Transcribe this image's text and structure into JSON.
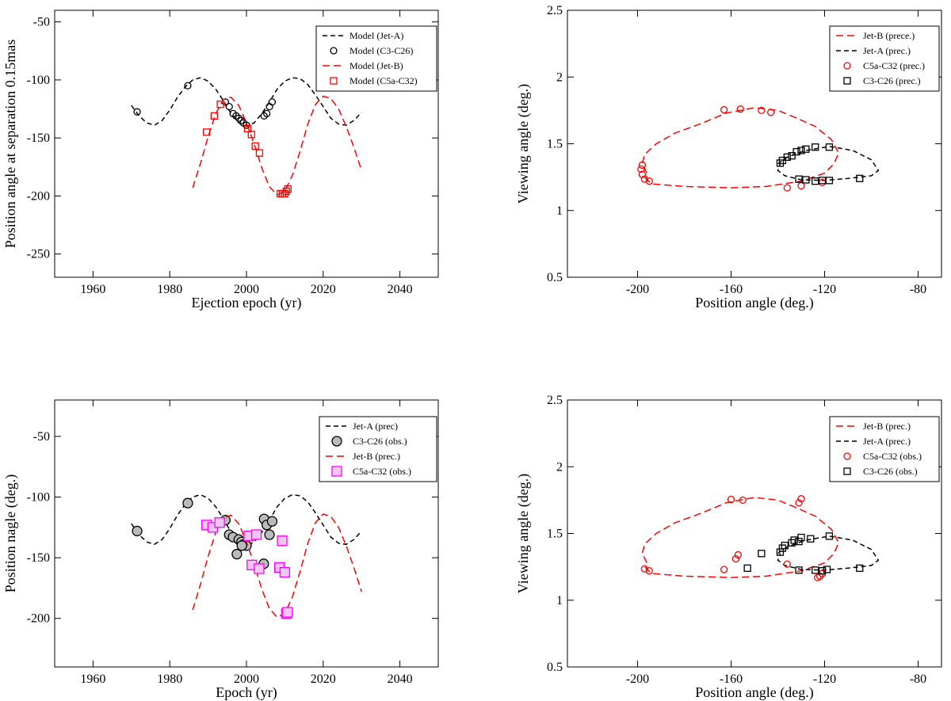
{
  "chart_data": [
    {
      "type": "line",
      "panel": "top-left",
      "xlabel": "Ejection epoch (yr)",
      "ylabel": "Position angle at separation 0.15mas",
      "xlim": [
        1950,
        2050
      ],
      "ylim": [
        -270,
        -40
      ],
      "xticks": [
        1960,
        1980,
        2000,
        2020,
        2040
      ],
      "yticks": [
        -250,
        -200,
        -150,
        -100,
        -50
      ],
      "legend_position": "top-right",
      "series": [
        {
          "name": "Model (Jet-A)",
          "kind": "line",
          "color": "#000000",
          "dash": "6,4",
          "x": [
            1970,
            1972,
            1974,
            1976,
            1978,
            1980,
            1982,
            1984,
            1986,
            1988,
            1990,
            1992,
            1994,
            1996,
            1998,
            2000,
            2002,
            2004,
            2006,
            2008,
            2010,
            2012,
            2014,
            2016,
            2018,
            2020,
            2022,
            2024,
            2026,
            2028,
            2030
          ],
          "y": [
            -122,
            -131,
            -137,
            -139,
            -135,
            -126,
            -115,
            -106,
            -100,
            -98,
            -101,
            -108,
            -118,
            -129,
            -137,
            -140,
            -137,
            -129,
            -119,
            -108,
            -101,
            -98,
            -99,
            -104,
            -113,
            -123,
            -133,
            -138,
            -139,
            -135,
            -128
          ]
        },
        {
          "name": "Model (C3-C26)",
          "kind": "points",
          "marker": "circle",
          "color": "#000000",
          "x": [
            1971.5,
            1984.7,
            1994.5,
            1995.5,
            1996.5,
            1997.3,
            1998.0,
            1998.6,
            1999.2,
            2000.0,
            2004.6,
            2005.3,
            2006.0,
            2006.7
          ],
          "y": [
            -127.5,
            -105,
            -119,
            -123,
            -129,
            -131,
            -133,
            -135,
            -137,
            -139,
            -131,
            -129,
            -123,
            -119
          ]
        },
        {
          "name": "Model (Jet-B)",
          "kind": "line",
          "color": "#ff0000",
          "dash": "9,5",
          "x": [
            1986,
            1988,
            1990,
            1992,
            1994,
            1996,
            1998,
            2000,
            2002,
            2004,
            2006,
            2008,
            2010,
            2012,
            2014,
            2016,
            2018,
            2020,
            2022,
            2024,
            2026,
            2028,
            2030
          ],
          "y": [
            -193,
            -172,
            -149,
            -129,
            -117,
            -115,
            -122,
            -137,
            -155,
            -176,
            -192,
            -199,
            -196,
            -182,
            -161,
            -138,
            -121,
            -114,
            -116,
            -125,
            -140,
            -158,
            -178
          ]
        },
        {
          "name": "Model (C5a-C32)",
          "kind": "points",
          "marker": "square",
          "color": "#ff0000",
          "x": [
            1989.6,
            1991.6,
            1993.2,
            2000.3,
            2001.3,
            2002.3,
            2003.4,
            2008.8,
            2009.4,
            2010.0,
            2010.4,
            2010.8
          ],
          "y": [
            -145,
            -131,
            -121,
            -142,
            -147,
            -157,
            -163,
            -198,
            -198,
            -198,
            -196,
            -194
          ]
        }
      ]
    },
    {
      "type": "line",
      "panel": "top-right",
      "xlabel": "Position angle (deg.)",
      "ylabel": "Viewing angle (deg.)",
      "xlim": [
        -230,
        -70
      ],
      "ylim": [
        0.5,
        2.5
      ],
      "xticks": [
        -200,
        -160,
        -120,
        -80
      ],
      "yticks": [
        0.5,
        1,
        1.5,
        2,
        2.5
      ],
      "legend_position": "top-right",
      "series": [
        {
          "name": "Jet-B (prece.)",
          "kind": "line",
          "color": "#ff0000",
          "dash": "9,5",
          "x": [
            -196,
            -198,
            -197,
            -192,
            -184,
            -173,
            -162,
            -150,
            -140,
            -133,
            -124,
            -117,
            -114,
            -116,
            -120,
            -130,
            -145,
            -160,
            -180,
            -194,
            -197
          ],
          "y": [
            1.28,
            1.35,
            1.42,
            1.5,
            1.58,
            1.65,
            1.73,
            1.77,
            1.75,
            1.7,
            1.63,
            1.53,
            1.43,
            1.35,
            1.28,
            1.22,
            1.18,
            1.17,
            1.18,
            1.2,
            1.25
          ]
        },
        {
          "name": "Jet-A (prec.)",
          "kind": "line",
          "color": "#000000",
          "dash": "6,4",
          "x": [
            -140,
            -136,
            -128,
            -118,
            -108,
            -100,
            -97,
            -100,
            -110,
            -120,
            -130,
            -137,
            -140,
            -139
          ],
          "y": [
            1.35,
            1.4,
            1.45,
            1.48,
            1.45,
            1.38,
            1.3,
            1.26,
            1.24,
            1.225,
            1.23,
            1.26,
            1.3,
            1.35
          ]
        },
        {
          "name": "C5a-C32 (prec.)",
          "kind": "points",
          "marker": "circle",
          "color": "#ff0000",
          "x": [
            -198,
            -198.5,
            -198,
            -197,
            -195,
            -163,
            -156,
            -147,
            -143,
            -136,
            -130,
            -121
          ],
          "y": [
            1.34,
            1.31,
            1.27,
            1.235,
            1.22,
            1.755,
            1.76,
            1.75,
            1.735,
            1.17,
            1.185,
            1.21
          ]
        },
        {
          "name": "C3-C26 (prec.)",
          "kind": "points",
          "marker": "square",
          "color": "#000000",
          "x": [
            -139,
            -138,
            -136,
            -134,
            -132,
            -130,
            -128,
            -124,
            -118,
            -131,
            -128,
            -124,
            -121,
            -118,
            -105
          ],
          "y": [
            1.355,
            1.375,
            1.4,
            1.41,
            1.44,
            1.45,
            1.46,
            1.475,
            1.475,
            1.235,
            1.23,
            1.22,
            1.225,
            1.225,
            1.24
          ]
        }
      ]
    },
    {
      "type": "line",
      "panel": "bottom-left",
      "xlabel": "Epoch (yr)",
      "ylabel": "Position nagle (deg.)",
      "xlim": [
        1950,
        2050
      ],
      "ylim": [
        -240,
        -20
      ],
      "xticks": [
        1960,
        1980,
        2000,
        2020,
        2040
      ],
      "yticks": [
        -200,
        -150,
        -100,
        -50
      ],
      "legend_position": "top-right",
      "series": [
        {
          "name": "Jet-A (prec)",
          "kind": "line",
          "color": "#000000",
          "dash": "6,4",
          "x": [
            1970,
            1972,
            1974,
            1976,
            1978,
            1980,
            1982,
            1984,
            1986,
            1988,
            1990,
            1992,
            1994,
            1996,
            1998,
            2000,
            2002,
            2004,
            2006,
            2008,
            2010,
            2012,
            2014,
            2016,
            2018,
            2020,
            2022,
            2024,
            2026,
            2028,
            2030
          ],
          "y": [
            -122,
            -131,
            -137,
            -139,
            -135,
            -126,
            -115,
            -106,
            -100,
            -98,
            -101,
            -108,
            -118,
            -129,
            -137,
            -140,
            -137,
            -129,
            -119,
            -108,
            -101,
            -98,
            -99,
            -104,
            -113,
            -123,
            -133,
            -138,
            -139,
            -135,
            -128
          ]
        },
        {
          "name": "C3-C26 (obs.)",
          "kind": "points",
          "marker": "circle",
          "color": "#000000",
          "x": [
            1971.5,
            1984.7,
            1994.5,
            1995.5,
            1996.5,
            1997.5,
            1998.0,
            1998.7,
            1999.3,
            2000.0,
            2004.6,
            2005.3,
            2006.0,
            2006.7,
            2004.5,
            1998.8
          ],
          "y": [
            -128,
            -105,
            -119,
            -131,
            -133,
            -147,
            -135,
            -137,
            -139,
            -140,
            -118,
            -123,
            -131,
            -120,
            -155,
            -140
          ]
        },
        {
          "name": "Jet-B (prec.)",
          "kind": "line",
          "color": "#ff0000",
          "dash": "9,5",
          "x": [
            1986,
            1988,
            1990,
            1992,
            1994,
            1996,
            1998,
            2000,
            2002,
            2004,
            2006,
            2008,
            2010,
            2012,
            2014,
            2016,
            2018,
            2020,
            2022,
            2024,
            2026,
            2028,
            2030
          ],
          "y": [
            -193,
            -172,
            -149,
            -129,
            -117,
            -115,
            -122,
            -137,
            -155,
            -176,
            -192,
            -199,
            -196,
            -182,
            -161,
            -138,
            -121,
            -114,
            -116,
            -125,
            -140,
            -158,
            -178
          ]
        },
        {
          "name": "C5a-C32 (obs.)",
          "kind": "points",
          "marker": "square",
          "color": "#ff00ff",
          "x": [
            1989.6,
            1991.2,
            1993.0,
            2000.6,
            2001.4,
            2002.6,
            2003.3,
            2008.6,
            2009.3,
            2010.0,
            2010.4,
            2010.7
          ],
          "y": [
            -123,
            -125,
            -121,
            -132,
            -156,
            -131,
            -159,
            -158,
            -136,
            -162,
            -196,
            -195
          ]
        }
      ]
    },
    {
      "type": "line",
      "panel": "bottom-right",
      "xlabel": "Position angle (deg.)",
      "ylabel": "Viewing angle (deg.)",
      "xlim": [
        -230,
        -70
      ],
      "ylim": [
        0.5,
        2.5
      ],
      "xticks": [
        -200,
        -160,
        -120,
        -80
      ],
      "yticks": [
        0.5,
        1,
        1.5,
        2,
        2.5
      ],
      "legend_position": "top-right",
      "series": [
        {
          "name": "Jet-B (prec.)",
          "kind": "line",
          "color": "#ff0000",
          "dash": "9,5",
          "x": [
            -196,
            -198,
            -197,
            -192,
            -184,
            -173,
            -162,
            -150,
            -140,
            -133,
            -124,
            -117,
            -114,
            -116,
            -120,
            -130,
            -145,
            -160,
            -180,
            -194,
            -197
          ],
          "y": [
            1.28,
            1.35,
            1.42,
            1.5,
            1.58,
            1.65,
            1.73,
            1.77,
            1.75,
            1.7,
            1.63,
            1.53,
            1.43,
            1.35,
            1.28,
            1.22,
            1.18,
            1.17,
            1.18,
            1.2,
            1.25
          ]
        },
        {
          "name": "Jet-A (prec.)",
          "kind": "line",
          "color": "#000000",
          "dash": "6,4",
          "x": [
            -140,
            -136,
            -128,
            -118,
            -108,
            -100,
            -97,
            -100,
            -110,
            -120,
            -130,
            -137,
            -140,
            -139
          ],
          "y": [
            1.35,
            1.4,
            1.45,
            1.48,
            1.45,
            1.38,
            1.3,
            1.26,
            1.24,
            1.225,
            1.23,
            1.26,
            1.3,
            1.35
          ]
        },
        {
          "name": "C5a-C32 (obs.)",
          "kind": "points",
          "marker": "circle",
          "color": "#ff0000",
          "x": [
            -197,
            -195,
            -163,
            -157,
            -160,
            -158,
            -155,
            -131,
            -130,
            -136,
            -122,
            -123,
            -121
          ],
          "y": [
            1.235,
            1.22,
            1.23,
            1.34,
            1.755,
            1.31,
            1.75,
            1.73,
            1.76,
            1.27,
            1.18,
            1.17,
            1.2
          ]
        },
        {
          "name": "C3-C26 (obs.)",
          "kind": "points",
          "marker": "square",
          "color": "#000000",
          "x": [
            -153,
            -147,
            -139,
            -138,
            -137,
            -134,
            -133,
            -131,
            -130,
            -126,
            -118,
            -131,
            -124,
            -121,
            -119,
            -105
          ],
          "y": [
            1.24,
            1.35,
            1.36,
            1.39,
            1.41,
            1.43,
            1.45,
            1.44,
            1.47,
            1.46,
            1.48,
            1.225,
            1.225,
            1.22,
            1.23,
            1.24
          ]
        }
      ]
    }
  ]
}
